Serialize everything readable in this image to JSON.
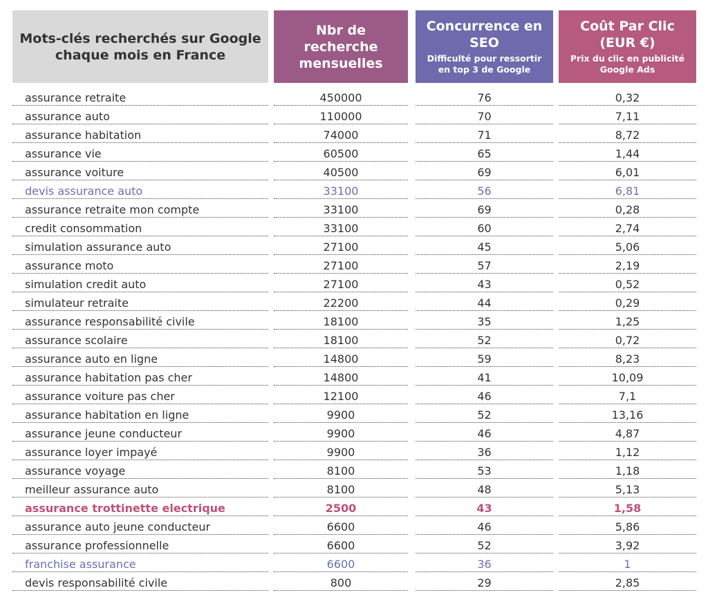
{
  "header": {
    "columns": [
      {
        "title": "Mots-clés recherchés sur Google chaque mois en France",
        "background": "#d9d9d9",
        "color": "#333333"
      },
      {
        "title": "Nbr de recherche mensuelles",
        "background": "#9b5b86",
        "color": "#ffffff"
      },
      {
        "title": "Concurrence en SEO",
        "subtitle": "Difficulté pour ressortir en top 3 de Google",
        "background": "#6f6aad",
        "color": "#ffffff"
      },
      {
        "title": "Coût Par Clic (EUR €)",
        "subtitle": "Prix du clic en publicité Google Ads",
        "background": "#b65a80",
        "color": "#ffffff"
      }
    ]
  },
  "table": {
    "rows": [
      {
        "cells": [
          "assurance retraite",
          "450000",
          "76",
          "0,32"
        ]
      },
      {
        "cells": [
          "assurance auto",
          "110000",
          "70",
          "7,11"
        ]
      },
      {
        "cells": [
          "assurance habitation",
          "74000",
          "71",
          "8,72"
        ]
      },
      {
        "cells": [
          "assurance vie",
          "60500",
          "65",
          "1,44"
        ]
      },
      {
        "cells": [
          "assurance voiture",
          "40500",
          "69",
          "6,01"
        ]
      },
      {
        "cells": [
          "devis assurance auto",
          "33100",
          "56",
          "6,81"
        ],
        "color": "#6a6fb0"
      },
      {
        "cells": [
          "assurance retraite mon compte",
          "33100",
          "69",
          "0,28"
        ]
      },
      {
        "cells": [
          "credit consommation",
          "33100",
          "60",
          "2,74"
        ]
      },
      {
        "cells": [
          "simulation assurance auto",
          "27100",
          "45",
          "5,06"
        ]
      },
      {
        "cells": [
          "assurance moto",
          "27100",
          "57",
          "2,19"
        ]
      },
      {
        "cells": [
          "simulation credit auto",
          "27100",
          "43",
          "0,52"
        ]
      },
      {
        "cells": [
          "simulateur retraite",
          "22200",
          "44",
          "0,29"
        ]
      },
      {
        "cells": [
          "assurance responsabilité civile",
          "18100",
          "35",
          "1,25"
        ]
      },
      {
        "cells": [
          "assurance scolaire",
          "18100",
          "52",
          "0,72"
        ]
      },
      {
        "cells": [
          "assurance auto en ligne",
          "14800",
          "59",
          "8,23"
        ]
      },
      {
        "cells": [
          "assurance habitation pas cher",
          "14800",
          "41",
          "10,09"
        ]
      },
      {
        "cells": [
          "assurance voiture pas cher",
          "12100",
          "46",
          "7,1"
        ]
      },
      {
        "cells": [
          "assurance habitation en ligne",
          "9900",
          "52",
          "13,16"
        ]
      },
      {
        "cells": [
          "assurance jeune conducteur",
          "9900",
          "46",
          "4,87"
        ]
      },
      {
        "cells": [
          "assurance loyer impayé",
          "9900",
          "36",
          "1,12"
        ]
      },
      {
        "cells": [
          "assurance voyage",
          "8100",
          "53",
          "1,18"
        ]
      },
      {
        "cells": [
          "meilleur assurance auto",
          "8100",
          "48",
          "5,13"
        ]
      },
      {
        "cells": [
          "assurance trottinette electrique",
          "2500",
          "43",
          "1,58"
        ],
        "color": "#c0507a",
        "bold": true
      },
      {
        "cells": [
          "assurance auto jeune conducteur",
          "6600",
          "46",
          "5,86"
        ]
      },
      {
        "cells": [
          "assurance professionnelle",
          "6600",
          "52",
          "3,92"
        ]
      },
      {
        "cells": [
          "franchise assurance",
          "6600",
          "36",
          "1"
        ],
        "color": "#6a6fb0"
      },
      {
        "cells": [
          "devis responsabilité civile",
          "800",
          "29",
          "2,85"
        ]
      }
    ]
  }
}
